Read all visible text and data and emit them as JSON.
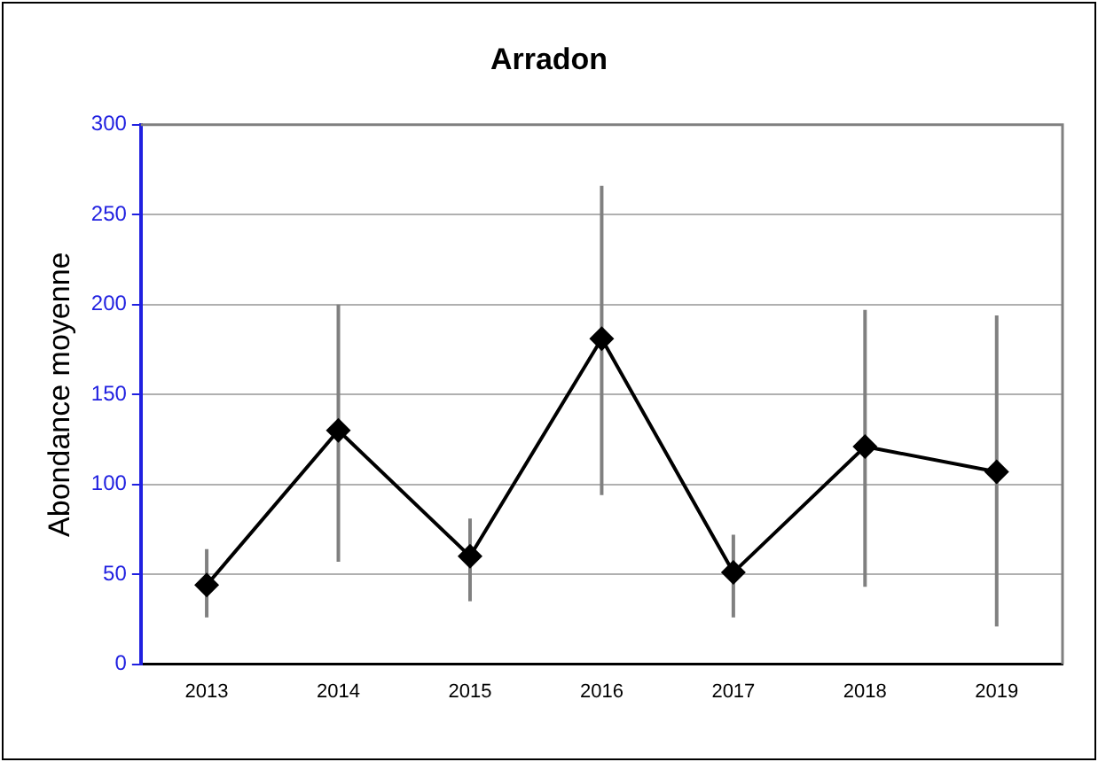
{
  "chart_data": {
    "type": "line",
    "title": "Arradon",
    "ylabel": "Abondance moyenne",
    "categories": [
      "2013",
      "2014",
      "2015",
      "2016",
      "2017",
      "2018",
      "2019"
    ],
    "series": [
      {
        "color": "#000000",
        "values": [
          44,
          130,
          60,
          181,
          51,
          121,
          107
        ],
        "errors": [
          [
            26,
            64
          ],
          [
            57,
            200
          ],
          [
            35,
            81
          ],
          [
            94,
            266
          ],
          [
            26,
            72
          ],
          [
            43,
            197
          ],
          [
            21,
            194
          ]
        ]
      }
    ],
    "ylim": [
      0,
      300
    ],
    "yticks": [
      0,
      50,
      100,
      150,
      200,
      250,
      300
    ],
    "grid": "y",
    "legend": false,
    "marker": "diamond",
    "line_style": "solid"
  }
}
